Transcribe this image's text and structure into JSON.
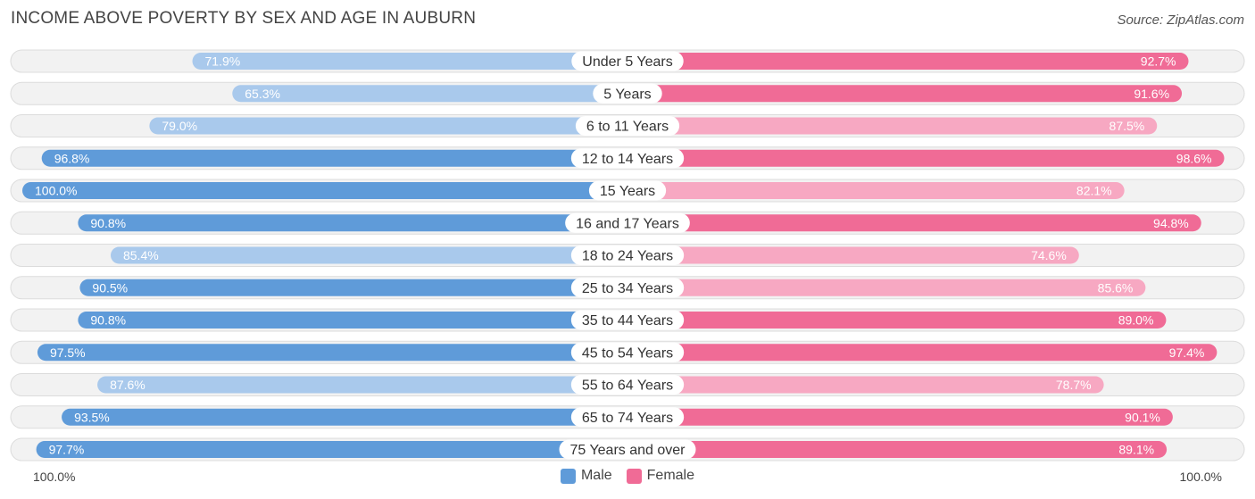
{
  "header": {
    "title": "INCOME ABOVE POVERTY BY SEX AND AGE IN AUBURN",
    "source": "Source: ZipAtlas.com"
  },
  "axis": {
    "left_label": "100.0%",
    "right_label": "100.0%"
  },
  "legend": {
    "male_label": "Male",
    "female_label": "Female"
  },
  "colors": {
    "male_strong": "#5f9bd9",
    "male_light": "#a9c9ec",
    "female_strong": "#f06b96",
    "female_light": "#f7a8c2",
    "row_bg": "#f2f2f2",
    "row_border": "#dcdcdc"
  },
  "chart_data": {
    "type": "bar",
    "orientation": "horizontal-diverging",
    "title": "INCOME ABOVE POVERTY BY SEX AND AGE IN AUBURN",
    "xlim": [
      0,
      100
    ],
    "categories": [
      "Under 5 Years",
      "5 Years",
      "6 to 11 Years",
      "12 to 14 Years",
      "15 Years",
      "16 and 17 Years",
      "18 to 24 Years",
      "25 to 34 Years",
      "35 to 44 Years",
      "45 to 54 Years",
      "55 to 64 Years",
      "65 to 74 Years",
      "75 Years and over"
    ],
    "series": [
      {
        "name": "Male",
        "values": [
          71.9,
          65.3,
          79.0,
          96.8,
          100.0,
          90.8,
          85.4,
          90.5,
          90.8,
          97.5,
          87.6,
          93.5,
          97.7
        ],
        "labels": [
          "71.9%",
          "65.3%",
          "79.0%",
          "96.8%",
          "100.0%",
          "90.8%",
          "85.4%",
          "90.5%",
          "90.8%",
          "97.5%",
          "87.6%",
          "93.5%",
          "97.7%"
        ]
      },
      {
        "name": "Female",
        "values": [
          92.7,
          91.6,
          87.5,
          98.6,
          82.1,
          94.8,
          74.6,
          85.6,
          89.0,
          97.4,
          78.7,
          90.1,
          89.1
        ],
        "labels": [
          "92.7%",
          "91.6%",
          "87.5%",
          "98.6%",
          "82.1%",
          "94.8%",
          "74.6%",
          "85.6%",
          "89.0%",
          "97.4%",
          "78.7%",
          "90.1%",
          "89.1%"
        ]
      }
    ],
    "legend_position": "bottom-center"
  }
}
